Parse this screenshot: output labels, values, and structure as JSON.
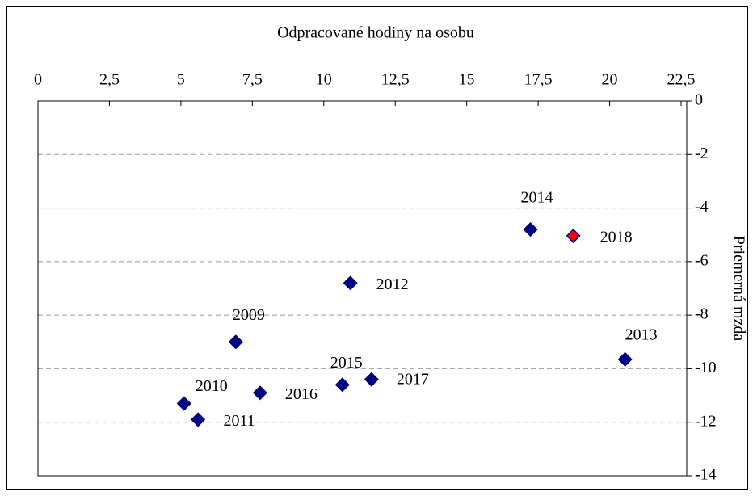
{
  "chart_data": {
    "type": "scatter",
    "x_axis_label": "Odpracované hodiny na osobu",
    "y_axis_label": "Priemerná mzda",
    "series": [
      {
        "color": "#000080",
        "point_labels": [
          "2009",
          "2010",
          "2011",
          "2012",
          "2013",
          "2014",
          "2015",
          "2016",
          "2017",
          "2018"
        ],
        "x": [
          6.92,
          5.11,
          5.6,
          10.93,
          20.54,
          17.23,
          10.65,
          7.77,
          11.67,
          18.73
        ],
        "values": [
          -9.0,
          -11.3,
          -11.9,
          -6.8,
          -9.65,
          -4.8,
          -10.6,
          -10.9,
          -10.4,
          -5.04
        ],
        "point_colors": [
          "#000080",
          "#000080",
          "#000080",
          "#000080",
          "#000080",
          "#000080",
          "#000080",
          "#000080",
          "#000080",
          "#ff0000"
        ]
      }
    ],
    "xlim": [
      0,
      22.5
    ],
    "xticks": [
      0,
      {
        "value": 2.5,
        "label": "2,5"
      },
      5,
      {
        "value": 7.5,
        "label": "7,5"
      },
      10,
      {
        "value": 12.5,
        "label": "12,5"
      },
      15,
      {
        "value": 17.5,
        "label": "17,5"
      },
      20,
      {
        "value": 22.5,
        "label": "22,5"
      }
    ],
    "ylim": [
      -14,
      0
    ],
    "yticks": [
      0,
      -2,
      -4,
      -6,
      -8,
      -10,
      -12,
      -14
    ],
    "grid": true
  }
}
